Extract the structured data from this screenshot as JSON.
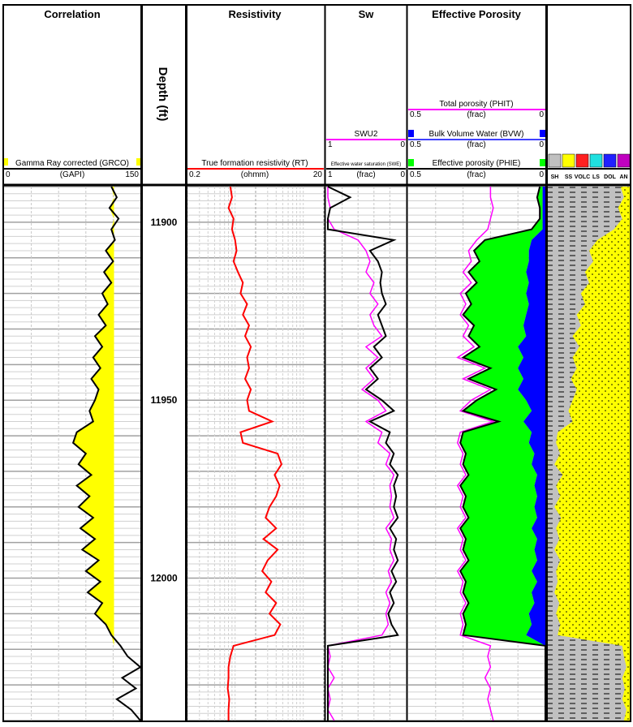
{
  "chart_data": {
    "type": "line",
    "title": "Well log",
    "depth_label": "Depth (ft)",
    "depth_range": [
      11890,
      12040
    ],
    "depth_ticks": [
      "11900",
      "11950",
      "12000"
    ],
    "depth_tick_values": [
      11900,
      11950,
      12000
    ],
    "depth_step": 3,
    "tracks": {
      "correlation": {
        "title": "Correlation",
        "curve": "Gamma Ray corrected (GRCO)",
        "unit": "(GAPI)",
        "min": "0",
        "max": "150",
        "range": [
          0,
          150
        ],
        "color": "#000000",
        "fill": "#ffff00"
      },
      "resistivity": {
        "title": "Resistivity",
        "curve": "True formation resistivity (RT)",
        "unit": "(ohmm)",
        "min": "0.2",
        "max": "20",
        "range": [
          0.2,
          20
        ],
        "scale": "log",
        "color": "#ff0000"
      },
      "sw": {
        "title": "Sw",
        "swu2": {
          "curve": "SWU2",
          "min": "1",
          "max": "0",
          "color": "#ff00ff"
        },
        "swe": {
          "curve": "Effective water saturation (SWE)",
          "unit": "(frac)",
          "min": "1",
          "max": "0",
          "color": "#000000"
        }
      },
      "porosity": {
        "title": "Effective Porosity",
        "phit": {
          "curve": "Total porosity (PHIT)",
          "unit": "(frac)",
          "min": "0.5",
          "max": "0",
          "color": "#ff00ff"
        },
        "bvw": {
          "curve": "Bulk Volume Water (BVW)",
          "unit": "(frac)",
          "min": "0.5",
          "max": "0",
          "color": "#0000ff"
        },
        "phie": {
          "curve": "Effective porosity (PHIE)",
          "unit": "(frac)",
          "min": "0.5",
          "max": "0",
          "color": "#000000",
          "fill": "#00ff00"
        }
      },
      "lithology": {
        "legend": [
          "SH",
          "SS",
          "VOLC",
          "LS",
          "DOL",
          "AN"
        ],
        "colors": [
          "#c0c0c0",
          "#ffff00",
          "#ff2020",
          "#20e0e0",
          "#2020ff",
          "#c000c0"
        ]
      }
    },
    "series": {
      "GRCO": [
        118,
        124,
        116,
        126,
        118,
        122,
        112,
        120,
        110,
        118,
        108,
        114,
        104,
        112,
        100,
        108,
        98,
        106,
        96,
        104,
        100,
        94,
        98,
        80,
        76,
        90,
        82,
        96,
        80,
        94,
        82,
        98,
        84,
        100,
        86,
        104,
        90,
        106,
        92,
        108,
        100,
        112,
        118,
        128,
        136,
        150,
        130,
        145,
        124,
        140,
        150
      ],
      "RT": [
        0.85,
        0.9,
        0.8,
        0.95,
        0.9,
        1.0,
        1.05,
        0.95,
        1.1,
        1.3,
        1.2,
        1.5,
        1.3,
        1.6,
        1.4,
        1.7,
        1.5,
        1.6,
        1.4,
        1.7,
        1.5,
        1.6,
        3.5,
        1.2,
        1.3,
        4.2,
        4.8,
        3.8,
        4.5,
        4.0,
        3.2,
        2.8,
        4.0,
        2.6,
        4.2,
        3.0,
        2.5,
        3.4,
        2.8,
        4.0,
        3.2,
        4.6,
        3.8,
        0.95,
        0.85,
        0.8,
        0.8,
        0.78,
        0.82,
        0.8,
        0.8
      ],
      "SWE": [
        0.98,
        0.7,
        0.95,
        0.98,
        0.98,
        0.15,
        0.45,
        0.35,
        0.3,
        0.32,
        0.3,
        0.25,
        0.35,
        0.3,
        0.25,
        0.4,
        0.3,
        0.45,
        0.35,
        0.5,
        0.3,
        0.15,
        0.45,
        0.2,
        0.25,
        0.15,
        0.2,
        0.1,
        0.15,
        0.12,
        0.15,
        0.1,
        0.2,
        0.12,
        0.15,
        0.1,
        0.18,
        0.12,
        0.2,
        0.15,
        0.22,
        0.18,
        0.1,
        0.98,
        0.98,
        0.98,
        0.98,
        0.98,
        0.98,
        0.98,
        0.98
      ],
      "SWU2": [
        0.98,
        0.98,
        0.95,
        0.98,
        0.9,
        0.6,
        0.5,
        0.45,
        0.5,
        0.4,
        0.45,
        0.35,
        0.45,
        0.4,
        0.3,
        0.5,
        0.35,
        0.5,
        0.4,
        0.55,
        0.35,
        0.25,
        0.5,
        0.3,
        0.35,
        0.2,
        0.25,
        0.15,
        0.2,
        0.18,
        0.2,
        0.15,
        0.25,
        0.18,
        0.2,
        0.15,
        0.22,
        0.18,
        0.25,
        0.2,
        0.25,
        0.22,
        0.3,
        0.98,
        0.95,
        0.98,
        0.9,
        0.98,
        0.95,
        0.98,
        0.9
      ],
      "PHIE": [
        0.02,
        0.03,
        0.02,
        0.02,
        0.05,
        0.22,
        0.26,
        0.24,
        0.28,
        0.25,
        0.29,
        0.27,
        0.3,
        0.26,
        0.28,
        0.24,
        0.3,
        0.2,
        0.28,
        0.18,
        0.25,
        0.3,
        0.17,
        0.3,
        0.31,
        0.29,
        0.3,
        0.28,
        0.31,
        0.29,
        0.3,
        0.28,
        0.31,
        0.29,
        0.3,
        0.28,
        0.31,
        0.29,
        0.3,
        0.28,
        0.3,
        0.29,
        0.3,
        0,
        0,
        0,
        0,
        0,
        0,
        0,
        0
      ],
      "PHIT": [
        0.2,
        0.2,
        0.19,
        0.2,
        0.21,
        0.25,
        0.28,
        0.27,
        0.3,
        0.27,
        0.31,
        0.29,
        0.31,
        0.28,
        0.3,
        0.26,
        0.32,
        0.22,
        0.3,
        0.2,
        0.27,
        0.31,
        0.19,
        0.31,
        0.32,
        0.3,
        0.31,
        0.29,
        0.32,
        0.3,
        0.31,
        0.29,
        0.32,
        0.3,
        0.31,
        0.29,
        0.32,
        0.3,
        0.31,
        0.29,
        0.31,
        0.3,
        0.31,
        0.2,
        0.21,
        0.2,
        0.22,
        0.2,
        0.21,
        0.2,
        0.19
      ],
      "BVW": [
        0.01,
        0.01,
        0.01,
        0.01,
        0.01,
        0.05,
        0.06,
        0.06,
        0.07,
        0.06,
        0.07,
        0.06,
        0.07,
        0.08,
        0.07,
        0.1,
        0.08,
        0.1,
        0.08,
        0.1,
        0.07,
        0.05,
        0.08,
        0.05,
        0.06,
        0.04,
        0.05,
        0.03,
        0.04,
        0.03,
        0.04,
        0.03,
        0.05,
        0.03,
        0.04,
        0.03,
        0.05,
        0.03,
        0.05,
        0.04,
        0.06,
        0.05,
        0.07,
        0,
        0,
        0,
        0,
        0,
        0,
        0,
        0
      ],
      "VSH": [
        0.88,
        0.92,
        0.85,
        0.9,
        0.8,
        0.6,
        0.5,
        0.55,
        0.45,
        0.5,
        0.4,
        0.45,
        0.35,
        0.4,
        0.3,
        0.38,
        0.3,
        0.35,
        0.28,
        0.35,
        0.3,
        0.25,
        0.3,
        0.12,
        0.1,
        0.15,
        0.08,
        0.18,
        0.1,
        0.15,
        0.08,
        0.16,
        0.1,
        0.14,
        0.08,
        0.15,
        0.1,
        0.12,
        0.08,
        0.14,
        0.1,
        0.15,
        0.12,
        0.9,
        0.92,
        0.95,
        0.9,
        0.93,
        0.9,
        0.95,
        0.92
      ]
    }
  }
}
